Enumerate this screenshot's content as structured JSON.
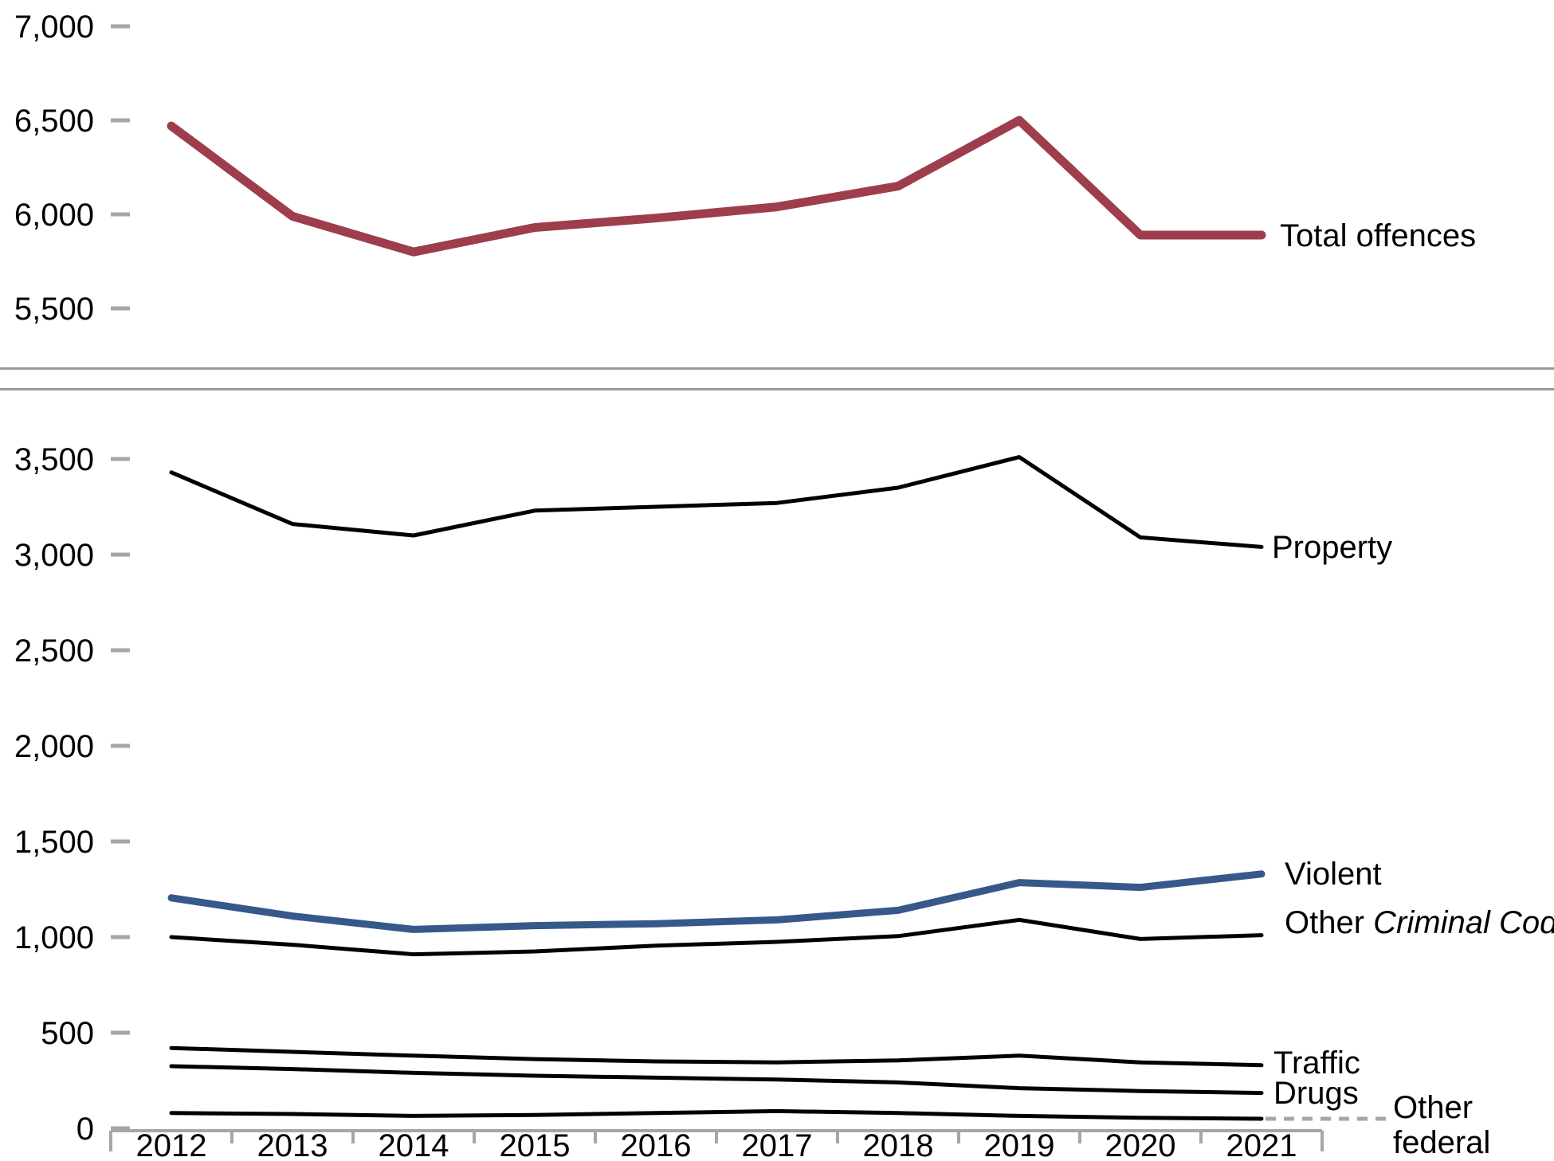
{
  "colors": {
    "total_offences_line": "#9E3E4D",
    "violent_line": "#36598A",
    "black_line": "#000000",
    "axis_gray": "#A6A6A6",
    "divider_gray": "#999999"
  },
  "labels": {
    "total_offences": "Total offences",
    "property": "Property",
    "violent": "Violent",
    "other_cc_regular": "Other ",
    "other_cc_italic": "Criminal Code",
    "traffic": "Traffic",
    "drugs": "Drugs",
    "other_federal": "Other federal statutes"
  },
  "chart_data": [
    {
      "type": "line",
      "panel": "top",
      "title": "",
      "xlabel": "",
      "ylabel": "",
      "grid": false,
      "legend_position": "right-of-line-end",
      "categories": [
        "2012",
        "2013",
        "2014",
        "2015",
        "2016",
        "2017",
        "2018",
        "2019",
        "2020",
        "2021"
      ],
      "ylim": [
        5500,
        7000
      ],
      "yticks": [
        {
          "value": 7000,
          "label": "7,000"
        },
        {
          "value": 6500,
          "label": "6,500"
        },
        {
          "value": 6000,
          "label": "6,000"
        },
        {
          "value": 5500,
          "label": "5,500"
        }
      ],
      "series": [
        {
          "name": "Total offences",
          "color": "#9E3E4D",
          "width": 11,
          "values": [
            6470,
            5990,
            5800,
            5930,
            5980,
            6040,
            6150,
            6500,
            5890,
            5890
          ]
        }
      ]
    },
    {
      "type": "line",
      "panel": "bottom",
      "title": "",
      "xlabel": "",
      "ylabel": "",
      "grid": false,
      "legend_position": "right-of-line-end",
      "categories": [
        "2012",
        "2013",
        "2014",
        "2015",
        "2016",
        "2017",
        "2018",
        "2019",
        "2020",
        "2021"
      ],
      "ylim": [
        0,
        3500
      ],
      "yticks": [
        {
          "value": 3500,
          "label": "3,500"
        },
        {
          "value": 3000,
          "label": "3,000"
        },
        {
          "value": 2500,
          "label": "2,500"
        },
        {
          "value": 2000,
          "label": "2,000"
        },
        {
          "value": 1500,
          "label": "1,500"
        },
        {
          "value": 1000,
          "label": "1,000"
        },
        {
          "value": 500,
          "label": "500"
        },
        {
          "value": 0,
          "label": "0"
        }
      ],
      "series": [
        {
          "name": "Property",
          "color": "#000000",
          "width": 5,
          "values": [
            3430,
            3160,
            3100,
            3230,
            3250,
            3270,
            3350,
            3510,
            3090,
            3040
          ]
        },
        {
          "name": "Violent",
          "color": "#36598A",
          "width": 9,
          "values": [
            1205,
            1110,
            1040,
            1060,
            1070,
            1090,
            1140,
            1285,
            1260,
            1330
          ]
        },
        {
          "name": "Other Criminal Code",
          "color": "#000000",
          "width": 5,
          "values": [
            1000,
            960,
            910,
            925,
            955,
            975,
            1005,
            1090,
            990,
            1010
          ]
        },
        {
          "name": "Traffic",
          "color": "#000000",
          "width": 5,
          "values": [
            420,
            400,
            380,
            362,
            350,
            345,
            355,
            380,
            345,
            330
          ]
        },
        {
          "name": "Drugs",
          "color": "#000000",
          "width": 5,
          "values": [
            325,
            310,
            290,
            275,
            265,
            255,
            240,
            210,
            195,
            185
          ]
        },
        {
          "name": "Other federal statutes",
          "color": "#000000",
          "width": 5,
          "dotted_extension": true,
          "values": [
            80,
            75,
            65,
            70,
            80,
            90,
            80,
            65,
            55,
            50
          ]
        }
      ]
    }
  ]
}
